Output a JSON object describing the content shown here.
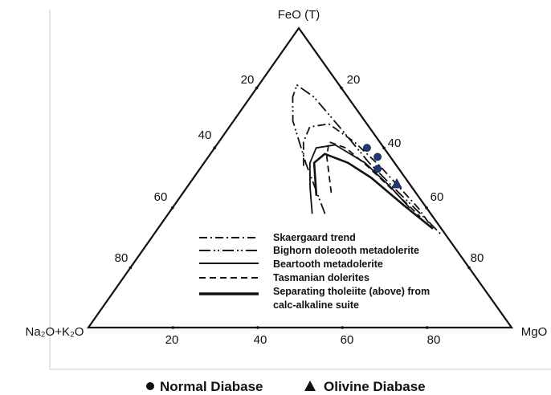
{
  "chart_data": {
    "type": "ternary",
    "title": "",
    "apex_labels": {
      "top": "FeO (T)",
      "left": "Na₂O+K₂O",
      "right": "MgO"
    },
    "ticks": {
      "left_side": [
        "20",
        "40",
        "60",
        "80"
      ],
      "right_side": [
        "20",
        "40",
        "60",
        "80"
      ],
      "bottom": [
        "20",
        "40",
        "60",
        "80"
      ]
    },
    "series": [
      {
        "name": "Skaergaard trend",
        "style": "dash-dot",
        "points": [
          [
            22,
            54,
            24
          ],
          [
            18,
            62,
            20
          ],
          [
            14,
            67,
            19
          ],
          [
            9,
            68,
            23
          ],
          [
            6,
            62,
            32
          ],
          [
            4,
            54,
            42
          ],
          [
            3,
            47,
            50
          ],
          [
            2,
            40,
            58
          ],
          [
            2,
            33,
            65
          ]
        ]
      },
      {
        "name": "Bighorn doleooth metadolerite",
        "style": "dash-dot-dot",
        "points": [
          [
            25,
            38,
            37
          ],
          [
            21,
            55,
            24
          ],
          [
            17,
            69,
            14
          ],
          [
            13,
            77,
            10
          ],
          [
            10,
            81,
            9
          ],
          [
            8,
            77,
            15
          ],
          [
            7,
            67,
            26
          ],
          [
            6,
            55,
            39
          ],
          [
            4,
            45,
            51
          ],
          [
            2,
            36,
            62
          ],
          [
            1,
            31,
            68
          ]
        ]
      },
      {
        "name": "Beartooth metadolerite",
        "style": "solid",
        "points": [
          [
            28,
            38,
            34
          ],
          [
            24,
            47,
            29
          ],
          [
            20,
            55,
            25
          ],
          [
            16,
            60,
            24
          ],
          [
            11,
            61,
            28
          ],
          [
            7,
            55,
            38
          ],
          [
            5,
            47,
            48
          ],
          [
            4,
            40,
            56
          ]
        ]
      },
      {
        "name": "Tasmanian dolerites",
        "style": "dashed",
        "points": [
          [
            20,
            45,
            35
          ],
          [
            15,
            57,
            28
          ],
          [
            12,
            62,
            26
          ],
          [
            9,
            60,
            31
          ],
          [
            7,
            54,
            39
          ],
          [
            5,
            46,
            49
          ],
          [
            3,
            37,
            60
          ]
        ]
      },
      {
        "name": "Separating tholeiite (above) from calc-alkaline suite",
        "style": "solid-thick",
        "points": [
          [
            24,
            44,
            32
          ],
          [
            19,
            55,
            26
          ],
          [
            15,
            58,
            27
          ],
          [
            11,
            55,
            34
          ],
          [
            8,
            50,
            42
          ],
          [
            5,
            41,
            54
          ],
          [
            2,
            33,
            65
          ]
        ]
      }
    ],
    "markers": [
      {
        "group": "Normal Diabase",
        "shape": "circle",
        "points": [
          [
            4,
            60,
            36
          ],
          [
            3,
            57,
            40
          ],
          [
            5,
            53,
            42
          ]
        ]
      },
      {
        "group": "Olivine Diabase",
        "shape": "triangle",
        "points": [
          [
            3,
            48,
            49
          ]
        ]
      }
    ],
    "legend": {
      "placement": "inside-bottom",
      "entries": [
        "Skaergaard trend",
        "Bighorn doleooth metadolerite",
        "Beartooth metadolerite",
        "Tasmanian dolerites",
        "Separating tholeiite (above) from",
        "calc-alkaline suite"
      ]
    },
    "bottom_legend": {
      "normal": "Normal Diabase",
      "olivine": "Olivine Diabase"
    },
    "colors": {
      "lines": "#111111",
      "markers": "#1f3a73"
    }
  }
}
